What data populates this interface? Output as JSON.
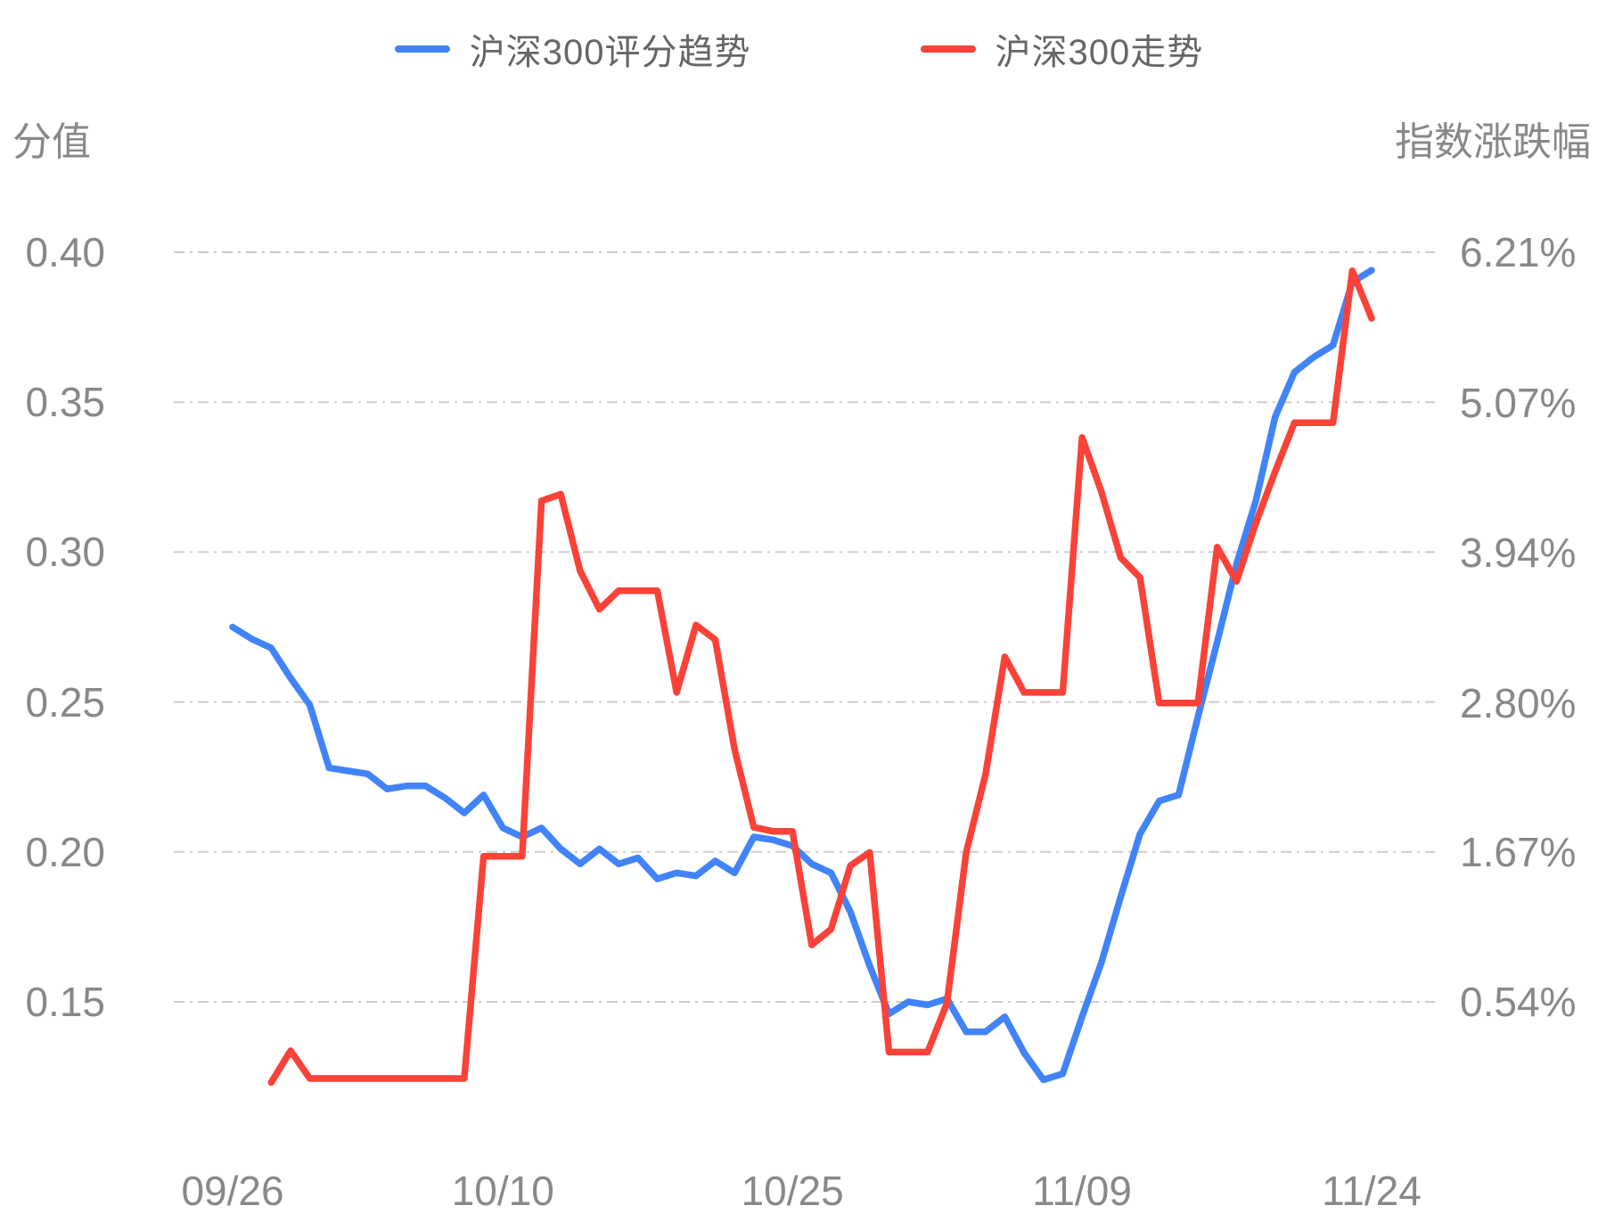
{
  "page": {
    "background": "#FFFFFF"
  },
  "legend": {
    "items": [
      {
        "label": "沪深300评分趋势",
        "color": "#4183FA"
      },
      {
        "label": "沪深300走势",
        "color": "#FA4238"
      }
    ]
  },
  "axes": {
    "left_title": "分值",
    "right_title": "指数涨跌幅",
    "left_tick_labels": [
      "0.40",
      "0.35",
      "0.30",
      "0.25",
      "0.20",
      "0.15"
    ],
    "right_tick_labels": [
      "6.21%",
      "5.07%",
      "3.94%",
      "2.80%",
      "1.67%",
      "0.54%"
    ],
    "x_tick_labels": [
      "09/26",
      "10/10",
      "10/25",
      "11/09",
      "11/24"
    ],
    "text_color": "#888888",
    "grid_color": "#CCCCCC"
  },
  "chart_data": {
    "type": "line",
    "title": "",
    "legend_position": "top",
    "grid": true,
    "x": [
      "09/26",
      "09/27",
      "09/28",
      "09/29",
      "09/30",
      "10/01",
      "10/02",
      "10/03",
      "10/04",
      "10/05",
      "10/06",
      "10/07",
      "10/08",
      "10/09",
      "10/10",
      "10/11",
      "10/12",
      "10/13",
      "10/14",
      "10/15",
      "10/16",
      "10/17",
      "10/18",
      "10/19",
      "10/20",
      "10/21",
      "10/22",
      "10/23",
      "10/24",
      "10/25",
      "10/26",
      "10/27",
      "10/28",
      "10/29",
      "10/30",
      "10/31",
      "11/01",
      "11/02",
      "11/03",
      "11/04",
      "11/05",
      "11/06",
      "11/07",
      "11/08",
      "11/09",
      "11/10",
      "11/11",
      "11/12",
      "11/13",
      "11/14",
      "11/15",
      "11/16",
      "11/17",
      "11/18",
      "11/19",
      "11/20",
      "11/21",
      "11/22",
      "11/23",
      "11/24"
    ],
    "x_tick_indices": [
      0,
      14,
      29,
      44,
      59
    ],
    "left_axis": {
      "label": "分值",
      "tick_values": [
        0.4,
        0.35,
        0.3,
        0.25,
        0.2,
        0.15
      ],
      "min": 0.1,
      "max": 0.4
    },
    "right_axis": {
      "label": "指数涨跌幅",
      "tick_values": [
        6.21,
        5.07,
        3.94,
        2.8,
        1.67,
        0.54
      ],
      "unit": "%",
      "min": -0.6,
      "max": 6.21
    },
    "series": [
      {
        "name": "沪深300评分趋势",
        "axis": "left",
        "color": "#4183FA",
        "values": [
          0.275,
          0.271,
          0.268,
          0.258,
          0.249,
          0.228,
          0.227,
          0.226,
          0.221,
          0.222,
          0.222,
          0.218,
          0.213,
          0.219,
          0.208,
          0.205,
          0.208,
          0.201,
          0.196,
          0.201,
          0.196,
          0.198,
          0.191,
          0.193,
          0.192,
          0.197,
          0.193,
          0.205,
          0.204,
          0.202,
          0.196,
          0.193,
          0.18,
          0.162,
          0.146,
          0.15,
          0.149,
          0.151,
          0.14,
          0.14,
          0.145,
          0.133,
          0.124,
          0.126,
          0.145,
          0.163,
          0.185,
          0.206,
          0.217,
          0.219,
          0.245,
          0.27,
          0.296,
          0.317,
          0.345,
          0.36,
          0.365,
          0.369,
          0.39,
          0.394
        ]
      },
      {
        "name": "沪深300走势",
        "axis": "right",
        "color": "#FA4238",
        "values": [
          null,
          null,
          -0.07,
          0.17,
          -0.04,
          -0.04,
          -0.04,
          -0.04,
          -0.04,
          -0.04,
          -0.04,
          -0.04,
          -0.04,
          1.64,
          1.64,
          1.64,
          4.33,
          4.38,
          3.8,
          3.51,
          3.65,
          3.65,
          3.65,
          2.88,
          3.39,
          3.28,
          2.45,
          1.86,
          1.83,
          1.83,
          0.97,
          1.09,
          1.57,
          1.67,
          0.16,
          0.16,
          0.16,
          0.53,
          1.67,
          2.26,
          3.15,
          2.88,
          2.88,
          2.88,
          4.81,
          4.4,
          3.9,
          3.75,
          2.8,
          2.8,
          2.8,
          3.98,
          3.72,
          4.16,
          4.55,
          4.92,
          4.92,
          4.92,
          6.07,
          5.71
        ]
      }
    ]
  }
}
